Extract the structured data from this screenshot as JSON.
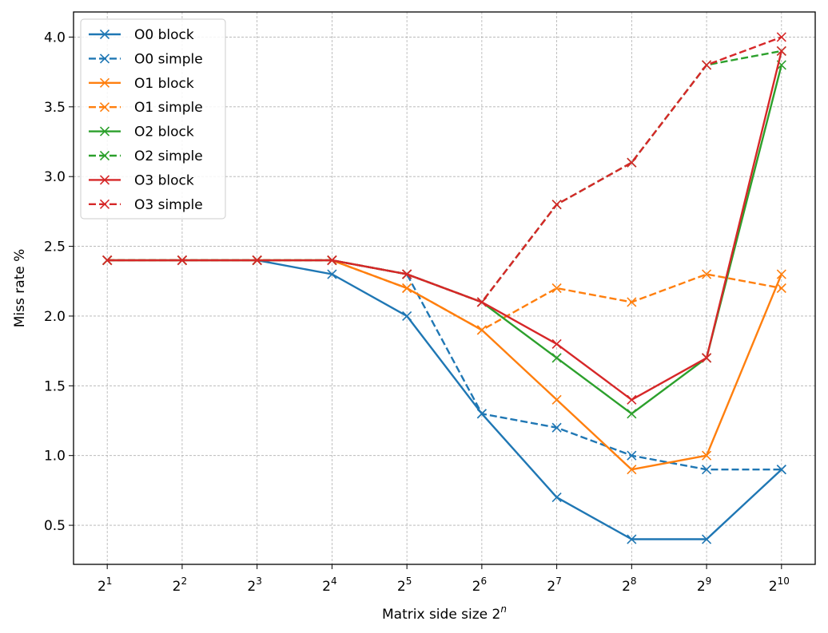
{
  "chart_data": {
    "type": "line",
    "xlabel": "Matrix side size 2",
    "xlabel_sup": "n",
    "ylabel": "Miss rate %",
    "x": [
      1,
      2,
      3,
      4,
      5,
      6,
      7,
      8,
      9,
      10
    ],
    "x_tick_base": "2",
    "x_tick_labels": [
      "1",
      "2",
      "3",
      "4",
      "5",
      "6",
      "7",
      "8",
      "9",
      "10"
    ],
    "y_ticks": [
      "0.5",
      "1.0",
      "1.5",
      "2.0",
      "2.5",
      "3.0",
      "3.5",
      "4.0"
    ],
    "ylim": [
      0.22,
      4.18
    ],
    "grid": true,
    "legend_position": "top-left",
    "series": [
      {
        "name": "O0 block",
        "color": "#1f77b4",
        "dash": "solid",
        "values": [
          2.4,
          2.4,
          2.4,
          2.3,
          2.0,
          1.3,
          0.7,
          0.4,
          0.4,
          0.9
        ]
      },
      {
        "name": "O0 simple",
        "color": "#1f77b4",
        "dash": "dashed",
        "values": [
          2.4,
          2.4,
          2.4,
          2.4,
          2.3,
          1.3,
          1.2,
          1.0,
          0.9,
          0.9
        ]
      },
      {
        "name": "O1 block",
        "color": "#ff7f0e",
        "dash": "solid",
        "values": [
          2.4,
          2.4,
          2.4,
          2.4,
          2.2,
          1.9,
          1.4,
          0.9,
          1.0,
          2.3
        ]
      },
      {
        "name": "O1 simple",
        "color": "#ff7f0e",
        "dash": "dashed",
        "values": [
          2.4,
          2.4,
          2.4,
          2.4,
          2.2,
          1.9,
          2.2,
          2.1,
          2.3,
          2.2
        ]
      },
      {
        "name": "O2 block",
        "color": "#2ca02c",
        "dash": "solid",
        "values": [
          2.4,
          2.4,
          2.4,
          2.4,
          2.3,
          2.1,
          1.7,
          1.3,
          1.7,
          3.8
        ]
      },
      {
        "name": "O2 simple",
        "color": "#2ca02c",
        "dash": "dashed",
        "values": [
          2.4,
          2.4,
          2.4,
          2.4,
          2.3,
          2.1,
          2.8,
          3.1,
          3.8,
          3.9
        ]
      },
      {
        "name": "O3 block",
        "color": "#d62728",
        "dash": "solid",
        "values": [
          2.4,
          2.4,
          2.4,
          2.4,
          2.3,
          2.1,
          1.8,
          1.4,
          1.7,
          3.9
        ]
      },
      {
        "name": "O3 simple",
        "color": "#d62728",
        "dash": "dashed",
        "values": [
          2.4,
          2.4,
          2.4,
          2.4,
          2.3,
          2.1,
          2.8,
          3.1,
          3.8,
          4.0
        ]
      }
    ]
  }
}
